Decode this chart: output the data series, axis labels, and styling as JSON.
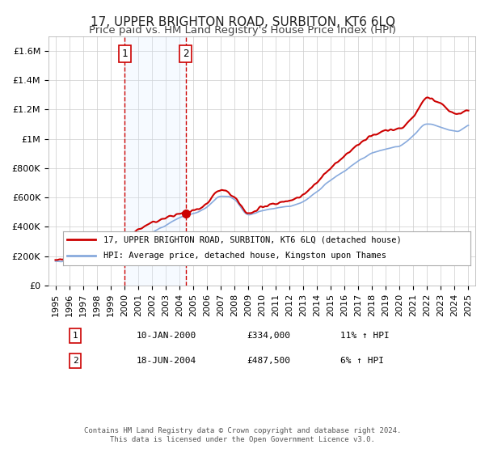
{
  "title": "17, UPPER BRIGHTON ROAD, SURBITON, KT6 6LQ",
  "subtitle": "Price paid vs. HM Land Registry's House Price Index (HPI)",
  "line1_label": "17, UPPER BRIGHTON ROAD, SURBITON, KT6 6LQ (detached house)",
  "line2_label": "HPI: Average price, detached house, Kingston upon Thames",
  "line1_color": "#cc0000",
  "line2_color": "#88aadd",
  "marker_color": "#cc0000",
  "shade_color": "#ddeeff",
  "vline_color": "#cc0000",
  "sale1_x": 2000.03,
  "sale1_y": 334000,
  "sale1_label": "1",
  "sale1_date": "10-JAN-2000",
  "sale1_price": "£334,000",
  "sale1_hpi": "11% ↑ HPI",
  "sale2_x": 2004.47,
  "sale2_y": 487500,
  "sale2_label": "2",
  "sale2_date": "18-JUN-2004",
  "sale2_price": "£487,500",
  "sale2_hpi": "6% ↑ HPI",
  "ylim": [
    0,
    1700000
  ],
  "xlim": [
    1994.5,
    2025.5
  ],
  "yticks": [
    0,
    200000,
    400000,
    600000,
    800000,
    1000000,
    1200000,
    1400000,
    1600000
  ],
  "ytick_labels": [
    "£0",
    "£200K",
    "£400K",
    "£600K",
    "£800K",
    "£1M",
    "£1.2M",
    "£1.4M",
    "£1.6M"
  ],
  "footer1": "Contains HM Land Registry data © Crown copyright and database right 2024.",
  "footer2": "This data is licensed under the Open Government Licence v3.0.",
  "bg_color": "#ffffff",
  "grid_color": "#cccccc",
  "title_fontsize": 11,
  "subtitle_fontsize": 9.5,
  "axis_fontsize": 8
}
